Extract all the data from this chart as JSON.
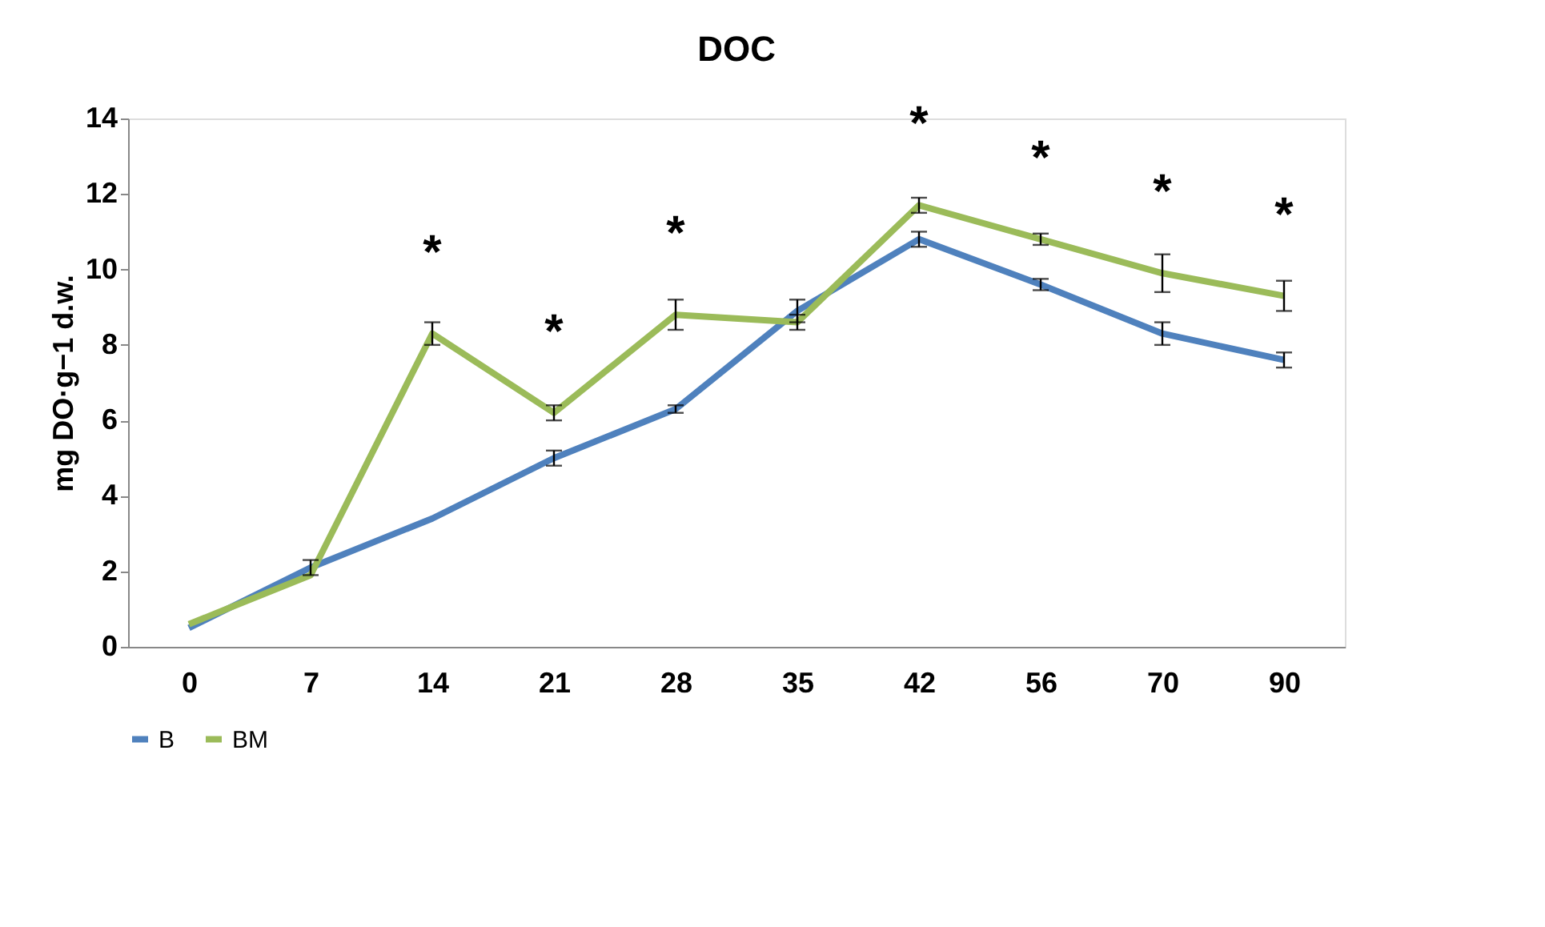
{
  "chart_data": {
    "type": "line",
    "title": "DOC",
    "ylabel": "mg DO·g−1 d.w.",
    "categories": [
      "0",
      "7",
      "14",
      "21",
      "28",
      "35",
      "42",
      "56",
      "70",
      "90"
    ],
    "series": [
      {
        "name": "B",
        "color": "#4f81bd",
        "values": [
          0.5,
          2.1,
          3.4,
          5.0,
          6.3,
          8.9,
          10.8,
          9.6,
          8.3,
          7.6
        ],
        "errors": [
          null,
          0.2,
          null,
          0.2,
          0.1,
          0.3,
          0.2,
          0.15,
          0.3,
          0.2
        ]
      },
      {
        "name": "BM",
        "color": "#9bbb59",
        "values": [
          0.6,
          1.9,
          8.3,
          6.2,
          8.8,
          8.6,
          11.7,
          10.8,
          9.9,
          9.3
        ],
        "errors": [
          null,
          null,
          0.3,
          0.2,
          0.4,
          0.2,
          0.2,
          0.15,
          0.5,
          0.4
        ]
      }
    ],
    "ylim": [
      0,
      14
    ],
    "yticks": [
      0,
      2,
      4,
      6,
      8,
      10,
      12,
      14
    ],
    "grid": false,
    "legend": "bottom",
    "marker": "none",
    "line_style": "solid",
    "annotations": [
      {
        "text": "*",
        "x": "14",
        "y": 8.3
      },
      {
        "text": "*",
        "x": "21",
        "y": 6.2
      },
      {
        "text": "*",
        "x": "28",
        "y": 8.8
      },
      {
        "text": "*",
        "x": "42",
        "y": 11.7
      },
      {
        "text": "*",
        "x": "56",
        "y": 10.8
      },
      {
        "text": "*",
        "x": "70",
        "y": 9.9
      },
      {
        "text": "*",
        "x": "90",
        "y": 9.3
      }
    ]
  }
}
